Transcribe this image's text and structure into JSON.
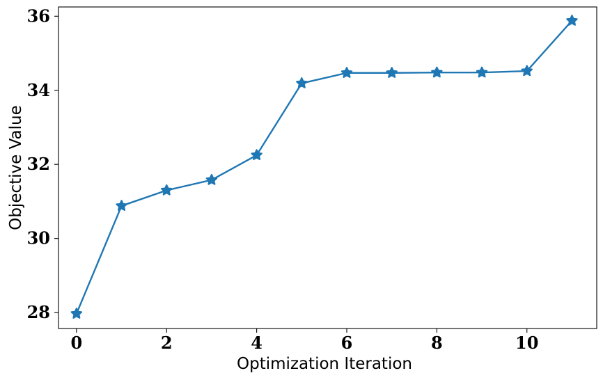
{
  "chart_data": {
    "type": "line",
    "title": "",
    "xlabel": "Optimization Iteration",
    "ylabel": "Objective Value",
    "xlim": [
      -0.4,
      11.55
    ],
    "ylim": [
      27.57,
      36.25
    ],
    "xticks": [
      0,
      2,
      4,
      6,
      8,
      10
    ],
    "yticks": [
      28,
      30,
      32,
      34,
      36
    ],
    "grid": false,
    "legend": "none",
    "series": [
      {
        "color": "#1f77b4",
        "marker": "star",
        "x": [
          0,
          1,
          2,
          3,
          4,
          5,
          6,
          7,
          8,
          9,
          10,
          11
        ],
        "y": [
          27.97,
          30.88,
          31.3,
          31.58,
          32.25,
          34.19,
          34.47,
          34.47,
          34.48,
          34.48,
          34.52,
          35.88
        ]
      }
    ]
  }
}
